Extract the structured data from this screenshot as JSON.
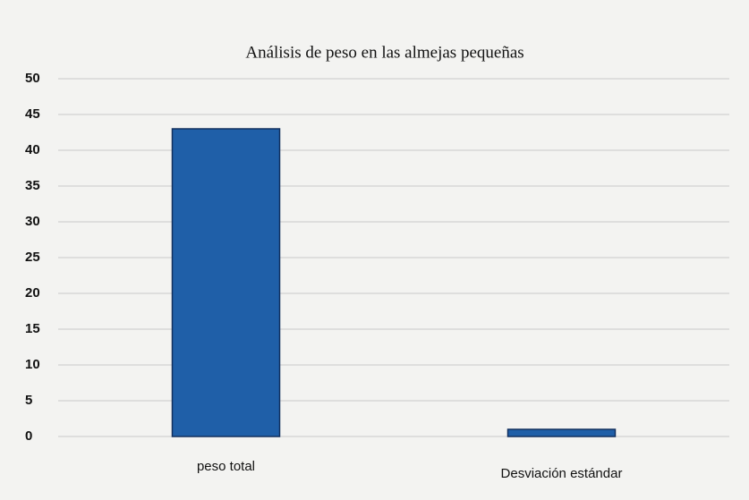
{
  "chart_data": {
    "type": "bar",
    "title": "Análisis de peso en las almejas pequeñas",
    "categories": [
      "peso total",
      "Desviación estándar"
    ],
    "values": [
      43,
      1
    ],
    "color": "#1f5fa8",
    "ylim": [
      0,
      50
    ],
    "yticks": [
      0,
      5,
      10,
      15,
      20,
      25,
      30,
      35,
      40,
      45,
      50
    ],
    "grid": true
  }
}
